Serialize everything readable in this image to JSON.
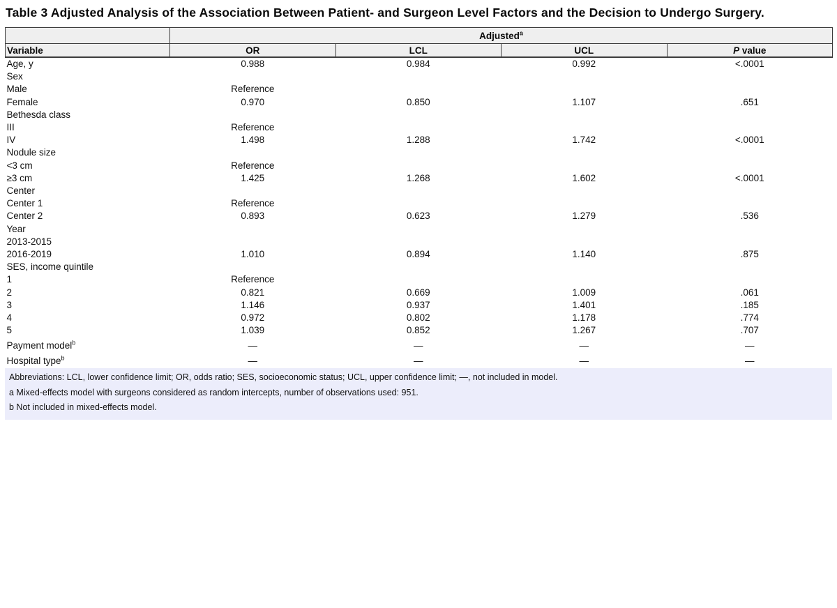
{
  "title": "Table 3 Adjusted Analysis of the Association Between Patient- and Surgeon Level Factors and the Decision to Undergo Surgery.",
  "table": {
    "spanner": {
      "label": "Adjusted",
      "sup": "a"
    },
    "columns": {
      "variable": "Variable",
      "or": "OR",
      "lcl": "LCL",
      "ucl": "UCL",
      "p_italic": "P",
      "p_rest": " value"
    },
    "rows": [
      {
        "variable": "Age, y",
        "or": "0.988",
        "lcl": "0.984",
        "ucl": "0.992",
        "p": "<.0001"
      },
      {
        "variable": "Sex"
      },
      {
        "variable": "Male",
        "or": "Reference"
      },
      {
        "variable": "Female",
        "or": "0.970",
        "lcl": "0.850",
        "ucl": "1.107",
        "p": ".651"
      },
      {
        "variable": "Bethesda class"
      },
      {
        "variable": "III",
        "or": "Reference"
      },
      {
        "variable": "IV",
        "or": "1.498",
        "lcl": "1.288",
        "ucl": "1.742",
        "p": "<.0001"
      },
      {
        "variable": "Nodule size"
      },
      {
        "variable": "<3 cm",
        "or": "Reference"
      },
      {
        "variable": "≥3 cm",
        "or": "1.425",
        "lcl": "1.268",
        "ucl": "1.602",
        "p": "<.0001"
      },
      {
        "variable": "Center"
      },
      {
        "variable": "Center 1",
        "or": "Reference"
      },
      {
        "variable": "Center 2",
        "or": "0.893",
        "lcl": "0.623",
        "ucl": "1.279",
        "p": ".536"
      },
      {
        "variable": "Year"
      },
      {
        "variable": "2013-2015"
      },
      {
        "variable": "2016-2019",
        "or": "1.010",
        "lcl": "0.894",
        "ucl": "1.140",
        "p": ".875"
      },
      {
        "variable": "SES, income quintile"
      },
      {
        "variable": "1",
        "or": "Reference"
      },
      {
        "variable": "2",
        "or": "0.821",
        "lcl": "0.669",
        "ucl": "1.009",
        "p": ".061"
      },
      {
        "variable": "3",
        "or": "1.146",
        "lcl": "0.937",
        "ucl": "1.401",
        "p": ".185"
      },
      {
        "variable": "4",
        "or": "0.972",
        "lcl": "0.802",
        "ucl": "1.178",
        "p": ".774"
      },
      {
        "variable": "5",
        "or": "1.039",
        "lcl": "0.852",
        "ucl": "1.267",
        "p": ".707"
      },
      {
        "variable": "Payment model",
        "sup": "b",
        "or": "—",
        "lcl": "—",
        "ucl": "—",
        "p": "—",
        "tall": true
      },
      {
        "variable": "Hospital type",
        "sup": "b",
        "or": "—",
        "lcl": "—",
        "ucl": "—",
        "p": "—",
        "tall": true
      }
    ],
    "footnotes": [
      "Abbreviations: LCL, lower confidence limit; OR, odds ratio; SES, socioeconomic status; UCL, upper confidence limit; —, not included in model.",
      "a Mixed-effects model with surgeons considered as random intercepts, number of observations used: 951.",
      "b Not included in mixed-effects model."
    ]
  },
  "colors": {
    "header_bg": "#efefef",
    "footnote_bg": "#ecedfb",
    "border": "#3c3c3c"
  }
}
